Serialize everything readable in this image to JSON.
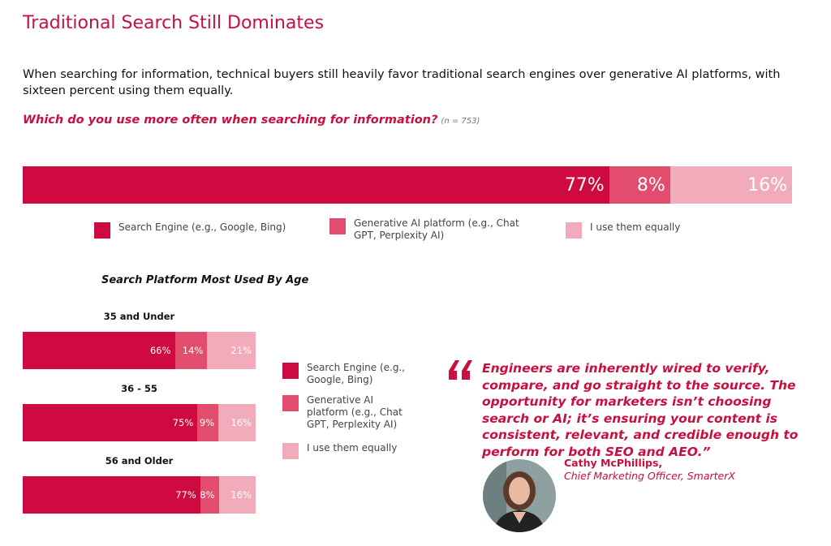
{
  "title": "Traditional Search Still Dominates",
  "description": "When searching for information, technical buyers still heavily favor traditional search engines over generative AI platforms, with sixteen percent using them equally.",
  "question": "Which do you use more often when searching for information?",
  "sample": "(n = 753)",
  "quote": {
    "text": "Engineers are inherently wired to verify, compare, and go straight to the source. The opportunity for marketers isn’t choosing search or AI; it’s ensuring your content is consistent, relevant, and credible enough to perform for both SEO and AEO.”",
    "author": "Cathy McPhillips,",
    "role": "Chief Marketing Officer, SmarterX"
  },
  "chart_data": [
    {
      "type": "stacked_bar",
      "categories": [
        null
      ],
      "series": [
        {
          "name": "Search Engine (e.g., Google, Bing)",
          "color": "#cf0a40",
          "values": [
            77
          ],
          "value_labels": [
            "77%"
          ]
        },
        {
          "name": "Generative AI platform (e.g., Chat GPT, Perplexity AI)",
          "color": "#e24d6d",
          "values": [
            8
          ],
          "value_labels": [
            "8%"
          ]
        },
        {
          "name": "I use them equally",
          "color": "#f2abbb",
          "values": [
            16
          ],
          "value_labels": [
            "16%"
          ]
        }
      ]
    },
    {
      "type": "stacked_bar",
      "title": "Search Platform Most Used By Age",
      "categories": [
        "35 and Under",
        "36 - 55",
        "56 and Older"
      ],
      "series": [
        {
          "name": "Search Engine (e.g., Google, Bing)",
          "color": "#cf0a40",
          "values": [
            66,
            75,
            77
          ],
          "value_labels": [
            "66%",
            "75%",
            "77%"
          ]
        },
        {
          "name": "Generative AI platform (e.g., Chat GPT, Perplexity AI)",
          "color": "#e24d6d",
          "values": [
            14,
            9,
            8
          ],
          "value_labels": [
            "14%",
            "9%",
            "8%"
          ]
        },
        {
          "name": "I use them equally",
          "color": "#f2abbb",
          "values": [
            21,
            16,
            16
          ],
          "value_labels": [
            "21%",
            "16%",
            "16%"
          ]
        }
      ]
    }
  ]
}
